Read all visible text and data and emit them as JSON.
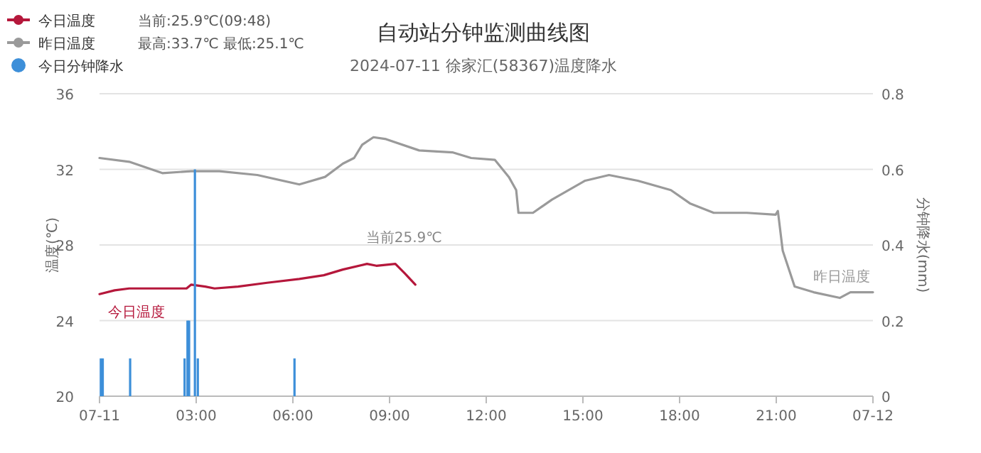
{
  "chart_data": {
    "type": "line",
    "title": "自动站分钟监测曲线图",
    "subtitle": "2024-07-11 徐家汇(58367)温度降水",
    "ylabel": "温度(℃)",
    "y2label": "分钟降水(mm)",
    "xlim": [
      0,
      24
    ],
    "xticks": [
      {
        "value": 0,
        "label": "07-11"
      },
      {
        "value": 3,
        "label": "03:00"
      },
      {
        "value": 6,
        "label": "06:00"
      },
      {
        "value": 9,
        "label": "09:00"
      },
      {
        "value": 12,
        "label": "12:00"
      },
      {
        "value": 15,
        "label": "15:00"
      },
      {
        "value": 18,
        "label": "18:00"
      },
      {
        "value": 21,
        "label": "21:00"
      },
      {
        "value": 24,
        "label": "07-12"
      }
    ],
    "ylim": [
      20,
      36
    ],
    "yticks": [
      20,
      24,
      28,
      32,
      36
    ],
    "y2lim": [
      0,
      0.8
    ],
    "y2ticks": [
      0,
      0.2,
      0.4,
      0.6,
      0.8
    ],
    "grid": "y",
    "legend": "top left",
    "series": [
      {
        "name": "今日温度",
        "color": "#b5173b",
        "x": [
          0,
          0.47,
          0.92,
          2.7,
          2.84,
          3.28,
          3.57,
          4.3,
          5.2,
          6.2,
          6.96,
          7.55,
          8.3,
          8.59,
          9.18,
          9.47,
          9.8
        ],
        "values": [
          25.4,
          25.6,
          25.7,
          25.7,
          25.9,
          25.8,
          25.7,
          25.8,
          26.0,
          26.2,
          26.4,
          26.7,
          27.0,
          26.9,
          27.0,
          26.5,
          25.9
        ]
      },
      {
        "name": "昨日温度",
        "color": "#9a9a9a",
        "x": [
          0,
          0.92,
          1.95,
          2.84,
          3.72,
          4.9,
          6.2,
          7.0,
          7.55,
          7.9,
          8.15,
          8.5,
          8.89,
          9.92,
          10.95,
          11.53,
          12.27,
          12.7,
          12.93,
          13.0,
          13.45,
          14.04,
          15.07,
          15.81,
          16.7,
          17.73,
          18.32,
          19.06,
          20.09,
          20.98,
          21.05,
          21.2,
          21.57,
          22.16,
          22.97,
          23.3,
          24
        ],
        "values": [
          32.6,
          32.4,
          31.8,
          31.9,
          31.9,
          31.7,
          31.2,
          31.6,
          32.3,
          32.6,
          33.3,
          33.7,
          33.6,
          33.0,
          32.9,
          32.6,
          32.5,
          31.6,
          30.9,
          29.7,
          29.7,
          30.4,
          31.4,
          31.7,
          31.4,
          30.9,
          30.2,
          29.7,
          29.7,
          29.6,
          29.8,
          27.7,
          25.8,
          25.5,
          25.2,
          25.5,
          25.5
        ]
      },
      {
        "name": "今日分钟降水",
        "type": "bar",
        "axis": "y2",
        "color": "#3d8fd9",
        "x": [
          0.04,
          0.1,
          0.95,
          2.64,
          2.73,
          2.78,
          2.96,
          3.05,
          6.05
        ],
        "values": [
          0.1,
          0.1,
          0.1,
          0.1,
          0.2,
          0.2,
          0.6,
          0.1,
          0.1
        ]
      }
    ],
    "annotations": [
      "当前:25.9℃(09:48)",
      "最高:33.7℃ 最低:25.1℃",
      {
        "text": "当前25.9℃",
        "x": 9.8,
        "y": 25.9
      }
    ]
  }
}
